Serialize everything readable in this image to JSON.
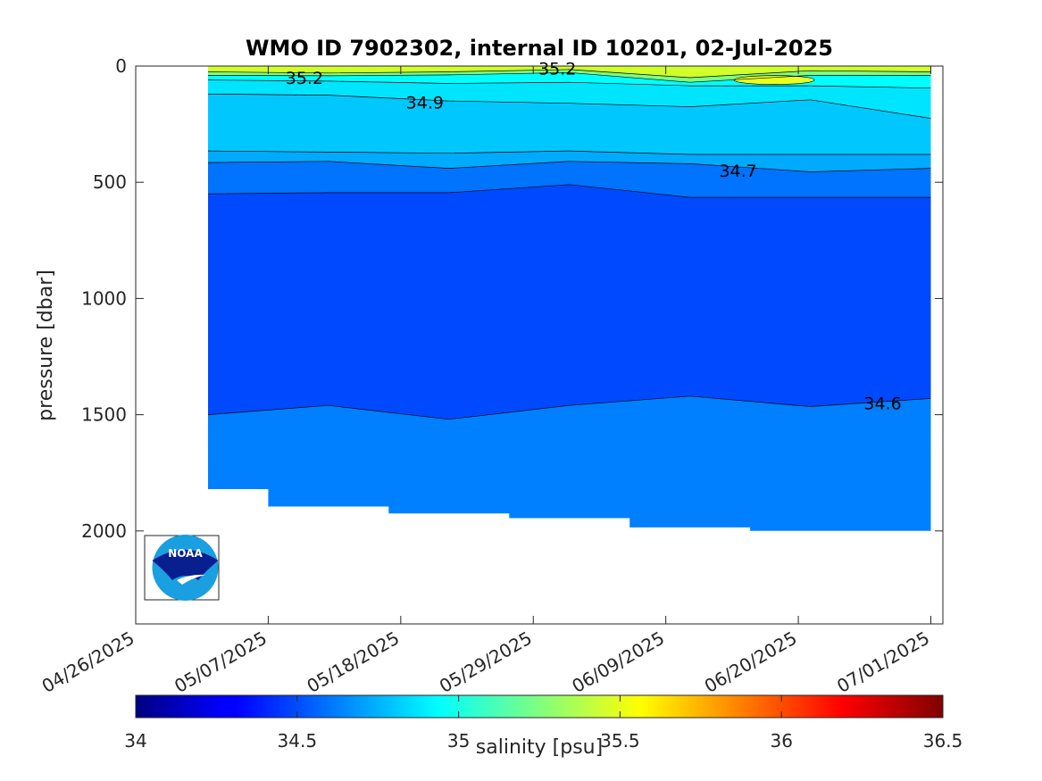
{
  "chart_data": {
    "type": "heatmap",
    "title": "WMO ID 7902302, internal ID 10201, 02-Jul-2025",
    "ylabel": "pressure [dbar]",
    "xlabel": "",
    "x_tick_labels": [
      "04/26/2025",
      "05/07/2025",
      "05/18/2025",
      "05/29/2025",
      "06/09/2025",
      "06/20/2025",
      "07/01/2025"
    ],
    "x_range_days": [
      0,
      67
    ],
    "y_ticks": [
      0,
      500,
      1000,
      1500,
      2000
    ],
    "ylim": [
      0,
      2400
    ],
    "y_reversed": true,
    "grid": false,
    "profile_days": [
      6,
      16,
      26,
      36,
      46,
      56,
      66
    ],
    "profile_max_pressure": [
      1820,
      1895,
      1925,
      1945,
      1985,
      2000,
      2000
    ],
    "contour_labels": [
      {
        "text": "35.2",
        "day": 14,
        "pressure": 50
      },
      {
        "text": "35.2",
        "day": 35,
        "pressure": 10
      },
      {
        "text": "34.9",
        "day": 24,
        "pressure": 155
      },
      {
        "text": "34.7",
        "day": 50,
        "pressure": 450
      },
      {
        "text": "34.6",
        "day": 62,
        "pressure": 1450
      }
    ],
    "colorbar": {
      "label": "salinity [psu]",
      "min": 34,
      "max": 36.5,
      "ticks": [
        "34",
        "34.5",
        "35",
        "35.5",
        "36",
        "36.5"
      ],
      "colormap": "jet"
    },
    "bands": [
      {
        "salinity": 34.55,
        "color": "#0080ff"
      },
      {
        "salinity": 34.6,
        "color": "#0049ff"
      },
      {
        "salinity": 34.7,
        "color": "#0073ff"
      },
      {
        "salinity": 34.8,
        "color": "#00aaff"
      },
      {
        "salinity": 34.9,
        "color": "#00c8ff"
      },
      {
        "salinity": 35.0,
        "color": "#00e5ff"
      },
      {
        "salinity": 35.2,
        "color": "#00ffff"
      },
      {
        "salinity": 35.35,
        "color": "#7dff80"
      },
      {
        "salinity": 35.55,
        "color": "#d0ff2a"
      }
    ]
  },
  "logo": {
    "text": "NOAA"
  }
}
